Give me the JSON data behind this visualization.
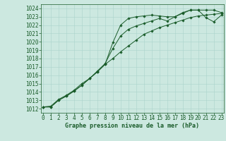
{
  "xlabel": "Graphe pression niveau de la mer (hPa)",
  "ylim": [
    1011.5,
    1024.5
  ],
  "xlim": [
    -0.3,
    23.3
  ],
  "yticks": [
    1012,
    1013,
    1014,
    1015,
    1016,
    1017,
    1018,
    1019,
    1020,
    1021,
    1022,
    1023,
    1024
  ],
  "xticks": [
    0,
    1,
    2,
    3,
    4,
    5,
    6,
    7,
    8,
    9,
    10,
    11,
    12,
    13,
    14,
    15,
    16,
    17,
    18,
    19,
    20,
    21,
    22,
    23
  ],
  "bg_color": "#cce8e0",
  "grid_color": "#aad4cc",
  "line_color": "#1a5c2a",
  "series1": [
    1012.2,
    1012.2,
    1013.0,
    1013.5,
    1014.1,
    1014.8,
    1015.6,
    1016.4,
    1017.3,
    1019.9,
    1022.0,
    1022.8,
    1023.0,
    1023.1,
    1023.2,
    1023.1,
    1023.0,
    1023.0,
    1023.4,
    1023.8,
    1023.8,
    1023.8,
    1023.8,
    1023.5
  ],
  "series2": [
    1012.2,
    1012.2,
    1013.0,
    1013.5,
    1014.1,
    1014.8,
    1015.6,
    1016.4,
    1017.3,
    1018.0,
    1018.8,
    1019.5,
    1020.2,
    1020.9,
    1021.3,
    1021.7,
    1022.0,
    1022.3,
    1022.6,
    1022.9,
    1023.1,
    1023.2,
    1023.3,
    1023.4
  ],
  "series3": [
    1012.2,
    1012.3,
    1013.1,
    1013.6,
    1014.2,
    1015.0,
    1015.6,
    1016.5,
    1017.4,
    1019.2,
    1020.7,
    1021.5,
    1021.9,
    1022.2,
    1022.5,
    1022.8,
    1022.5,
    1023.0,
    1023.5,
    1023.8,
    1023.8,
    1022.9,
    1022.4,
    1023.2
  ],
  "tick_fontsize": 5.5,
  "xlabel_fontsize": 6.0,
  "marker_size": 1.8,
  "line_width": 0.7
}
